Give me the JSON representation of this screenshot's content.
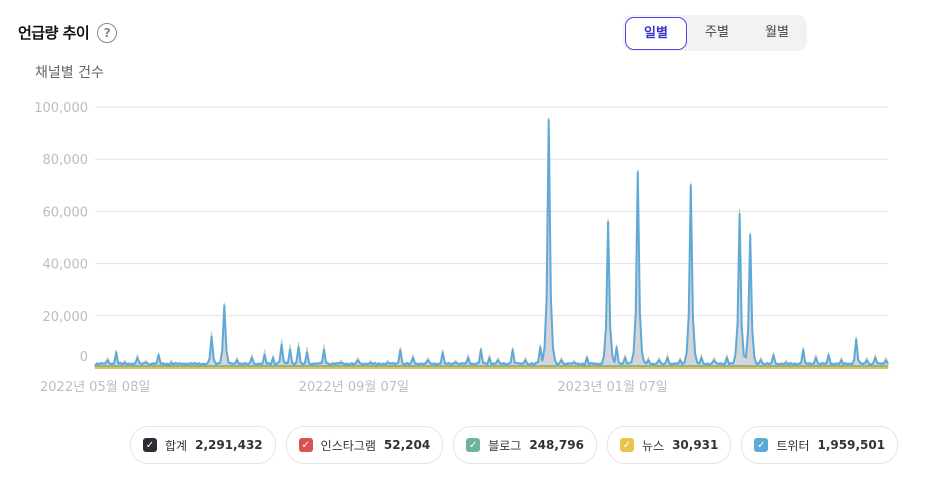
{
  "header": {
    "title": "언급량 추이",
    "help_icon": "?"
  },
  "period_toggle": {
    "options": [
      "일별",
      "주별",
      "월별"
    ],
    "selected": "일별"
  },
  "chart_data": {
    "type": "area",
    "ylabel": "채널별 건수",
    "ylim": [
      0,
      100000
    ],
    "yticks": [
      "100,000",
      "80,000",
      "60,000",
      "40,000",
      "20,000",
      "0"
    ],
    "xticks": [
      {
        "label": "2022년 05월 08일",
        "index": 0
      },
      {
        "label": "2022년 09월 07일",
        "index": 122
      },
      {
        "label": "2023년 01월 07일",
        "index": 244
      }
    ],
    "grid": true,
    "series": [
      {
        "name": "합계",
        "color": "#c9cbd0",
        "peaks": [
          [
            6,
            4000
          ],
          [
            10,
            7000
          ],
          [
            14,
            3000
          ],
          [
            20,
            5000
          ],
          [
            24,
            3000
          ],
          [
            30,
            6000
          ],
          [
            36,
            3000
          ],
          [
            42,
            2000
          ],
          [
            55,
            14000
          ],
          [
            61,
            25000
          ],
          [
            67,
            4000
          ],
          [
            74,
            5000
          ],
          [
            80,
            7000
          ],
          [
            84,
            5000
          ],
          [
            88,
            11000
          ],
          [
            92,
            9000
          ],
          [
            96,
            10000
          ],
          [
            100,
            8000
          ],
          [
            108,
            9000
          ],
          [
            116,
            3000
          ],
          [
            124,
            4000
          ],
          [
            130,
            3000
          ],
          [
            138,
            3000
          ],
          [
            144,
            8000
          ],
          [
            150,
            5000
          ],
          [
            157,
            4000
          ],
          [
            164,
            7000
          ],
          [
            170,
            3000
          ],
          [
            176,
            5000
          ],
          [
            182,
            8000
          ],
          [
            186,
            5000
          ],
          [
            190,
            4000
          ],
          [
            197,
            8000
          ],
          [
            203,
            4000
          ],
          [
            210,
            9000
          ],
          [
            214,
            96000
          ],
          [
            220,
            4000
          ],
          [
            226,
            3000
          ],
          [
            232,
            5000
          ],
          [
            242,
            57000
          ],
          [
            246,
            9000
          ],
          [
            250,
            5000
          ],
          [
            256,
            76000
          ],
          [
            261,
            4000
          ],
          [
            266,
            4000
          ],
          [
            270,
            5000
          ],
          [
            276,
            4000
          ],
          [
            281,
            71000
          ],
          [
            286,
            5000
          ],
          [
            292,
            4000
          ],
          [
            298,
            5000
          ],
          [
            304,
            61000
          ],
          [
            309,
            52000
          ],
          [
            314,
            4000
          ],
          [
            320,
            6000
          ],
          [
            326,
            3000
          ],
          [
            334,
            8000
          ],
          [
            340,
            5000
          ],
          [
            346,
            6000
          ],
          [
            352,
            4000
          ],
          [
            359,
            12000
          ],
          [
            364,
            4000
          ],
          [
            368,
            5000
          ],
          [
            373,
            4000
          ]
        ]
      },
      {
        "name": "인스타그램",
        "color": "#d9534f",
        "total": "52,204"
      },
      {
        "name": "블로그",
        "color": "#6fb39b",
        "total": "248,796"
      },
      {
        "name": "뉴스",
        "color": "#e8c34d",
        "total": "30,931"
      },
      {
        "name": "트위터",
        "color": "#5fa9d6",
        "peaks": [
          [
            6,
            3000
          ],
          [
            10,
            6000
          ],
          [
            14,
            2000
          ],
          [
            20,
            4000
          ],
          [
            24,
            2000
          ],
          [
            30,
            5000
          ],
          [
            36,
            2000
          ],
          [
            42,
            1500
          ],
          [
            55,
            12000
          ],
          [
            61,
            24000
          ],
          [
            67,
            3000
          ],
          [
            74,
            4000
          ],
          [
            80,
            5000
          ],
          [
            84,
            4000
          ],
          [
            88,
            9000
          ],
          [
            92,
            7000
          ],
          [
            96,
            8000
          ],
          [
            100,
            6000
          ],
          [
            108,
            7000
          ],
          [
            116,
            2000
          ],
          [
            124,
            3000
          ],
          [
            130,
            2000
          ],
          [
            138,
            2000
          ],
          [
            144,
            7000
          ],
          [
            150,
            4000
          ],
          [
            157,
            3000
          ],
          [
            164,
            6000
          ],
          [
            170,
            2000
          ],
          [
            176,
            4000
          ],
          [
            182,
            7000
          ],
          [
            186,
            4000
          ],
          [
            190,
            3000
          ],
          [
            197,
            7000
          ],
          [
            203,
            3000
          ],
          [
            210,
            8000
          ],
          [
            214,
            95000
          ],
          [
            220,
            3000
          ],
          [
            226,
            2000
          ],
          [
            232,
            4000
          ],
          [
            242,
            56000
          ],
          [
            246,
            8000
          ],
          [
            250,
            4000
          ],
          [
            256,
            75000
          ],
          [
            261,
            3000
          ],
          [
            266,
            3000
          ],
          [
            270,
            4000
          ],
          [
            276,
            3000
          ],
          [
            281,
            70000
          ],
          [
            286,
            4000
          ],
          [
            292,
            3000
          ],
          [
            298,
            4000
          ],
          [
            304,
            59000
          ],
          [
            309,
            51000
          ],
          [
            314,
            3000
          ],
          [
            320,
            5000
          ],
          [
            326,
            2000
          ],
          [
            334,
            7000
          ],
          [
            340,
            4000
          ],
          [
            346,
            5000
          ],
          [
            352,
            3000
          ],
          [
            359,
            11000
          ],
          [
            364,
            3000
          ],
          [
            368,
            4000
          ],
          [
            373,
            3000
          ]
        ]
      }
    ],
    "n_points": 375
  },
  "legend": [
    {
      "name": "합계",
      "value": "2,291,432",
      "color": "#2b2d33"
    },
    {
      "name": "인스타그램",
      "value": "52,204",
      "color": "#d9534f"
    },
    {
      "name": "블로그",
      "value": "248,796",
      "color": "#6fb39b"
    },
    {
      "name": "뉴스",
      "value": "30,931",
      "color": "#e8c34d"
    },
    {
      "name": "트위터",
      "value": "1,959,501",
      "color": "#5fa9d6"
    }
  ]
}
